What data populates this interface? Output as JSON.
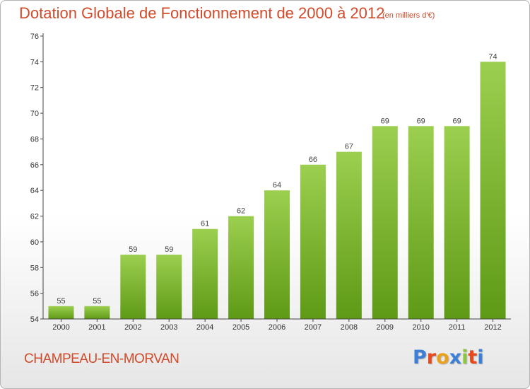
{
  "header": {
    "title": "Dotation Globale de Fonctionnement de 2000 à 2012",
    "unit": "(en milliers d'€)"
  },
  "footer": {
    "commune": "CHAMPEAU-EN-MORVAN",
    "logo_text": "Proxiti",
    "logo_colors": [
      "#3d7fd4",
      "#e8491d",
      "#e8a21d",
      "#3d7fd4",
      "#8cc63f",
      "#e8491d",
      "#3d7fd4"
    ]
  },
  "colors": {
    "title": "#d24a2a",
    "bar_top": "#9ccf4f",
    "bar_bottom": "#5e9a16",
    "axis": "#444444",
    "grid": "#dddddd"
  },
  "chart_data": {
    "type": "bar",
    "title": "Dotation Globale de Fonctionnement de 2000 à 2012",
    "subtitle": "(en milliers d'€)",
    "xlabel": "",
    "ylabel": "",
    "categories": [
      "2000",
      "2001",
      "2002",
      "2003",
      "2004",
      "2005",
      "2006",
      "2007",
      "2008",
      "2009",
      "2010",
      "2011",
      "2012"
    ],
    "values": [
      55,
      55,
      59,
      59,
      61,
      62,
      64,
      66,
      67,
      69,
      69,
      69,
      74
    ],
    "ylim": [
      54,
      76
    ],
    "yticks": [
      54,
      56,
      58,
      60,
      62,
      64,
      66,
      68,
      70,
      72,
      74,
      76
    ],
    "data_labels": true,
    "grid": false,
    "legend": "none"
  }
}
